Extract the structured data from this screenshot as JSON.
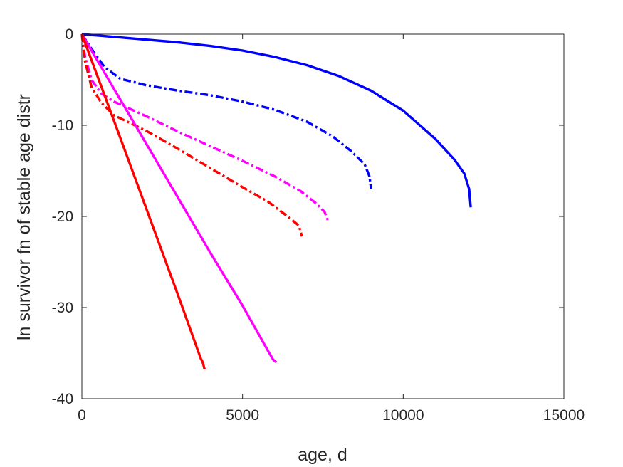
{
  "chart_data": {
    "type": "line",
    "title": "",
    "xlabel": "age, d",
    "ylabel": "ln survivor fn of stable age distr",
    "xlim": [
      0,
      15000
    ],
    "ylim": [
      -40,
      0
    ],
    "xticks": [
      0,
      5000,
      10000,
      15000
    ],
    "yticks": [
      0,
      -10,
      -20,
      -30,
      -40
    ],
    "xtick_labels": [
      "0",
      "5000",
      "10000",
      "15000"
    ],
    "ytick_labels": [
      "0",
      "-10",
      "-20",
      "-30",
      "-40"
    ],
    "grid": false,
    "box": true,
    "series": [
      {
        "color": "#0000ff",
        "style": "solid",
        "x": [
          0,
          1000,
          2000,
          3000,
          4000,
          5000,
          6000,
          7000,
          8000,
          9000,
          10000,
          11000,
          11600,
          11900,
          12050,
          12100
        ],
        "y": [
          0,
          -0.3,
          -0.6,
          -0.9,
          -1.3,
          -1.8,
          -2.5,
          -3.4,
          -4.6,
          -6.2,
          -8.4,
          -11.5,
          -13.8,
          -15.3,
          -17.0,
          -19.0
        ]
      },
      {
        "color": "#0000ff",
        "style": "dashdot",
        "x": [
          0,
          300,
          700,
          1200,
          2000,
          3000,
          4000,
          5000,
          6000,
          7000,
          7800,
          8400,
          8800,
          8950,
          9000
        ],
        "y": [
          0,
          -1.6,
          -3.6,
          -4.9,
          -5.6,
          -6.2,
          -6.7,
          -7.4,
          -8.3,
          -9.6,
          -11.2,
          -12.9,
          -14.3,
          -15.6,
          -17.0
        ]
      },
      {
        "color": "#ff00ff",
        "style": "dashdot",
        "x": [
          0,
          100,
          300,
          600,
          1000,
          2000,
          3000,
          4000,
          5000,
          6000,
          6800,
          7300,
          7550,
          7650
        ],
        "y": [
          0,
          -2.5,
          -5.0,
          -6.5,
          -7.4,
          -9.0,
          -10.7,
          -12.3,
          -13.9,
          -15.6,
          -17.2,
          -18.6,
          -19.5,
          -20.4
        ]
      },
      {
        "color": "#ff0000",
        "style": "dashdot",
        "x": [
          0,
          100,
          300,
          600,
          1000,
          2000,
          3000,
          4000,
          5000,
          5800,
          6400,
          6750,
          6850
        ],
        "y": [
          0,
          -3.0,
          -5.8,
          -7.5,
          -8.9,
          -10.6,
          -12.6,
          -14.7,
          -16.8,
          -18.4,
          -20.0,
          -21.0,
          -22.2
        ]
      },
      {
        "color": "#ff00ff",
        "style": "solid",
        "x": [
          0,
          1000,
          2000,
          3000,
          4000,
          5000,
          5800,
          5950,
          6050
        ],
        "y": [
          0,
          -6.0,
          -12.0,
          -18.0,
          -24.0,
          -29.8,
          -34.8,
          -35.7,
          -36.0
        ]
      },
      {
        "color": "#ff0000",
        "style": "solid",
        "x": [
          0,
          1000,
          2000,
          3000,
          3700,
          3760,
          3820
        ],
        "y": [
          0,
          -9.5,
          -19.1,
          -28.7,
          -35.6,
          -36.0,
          -36.8
        ]
      }
    ]
  }
}
